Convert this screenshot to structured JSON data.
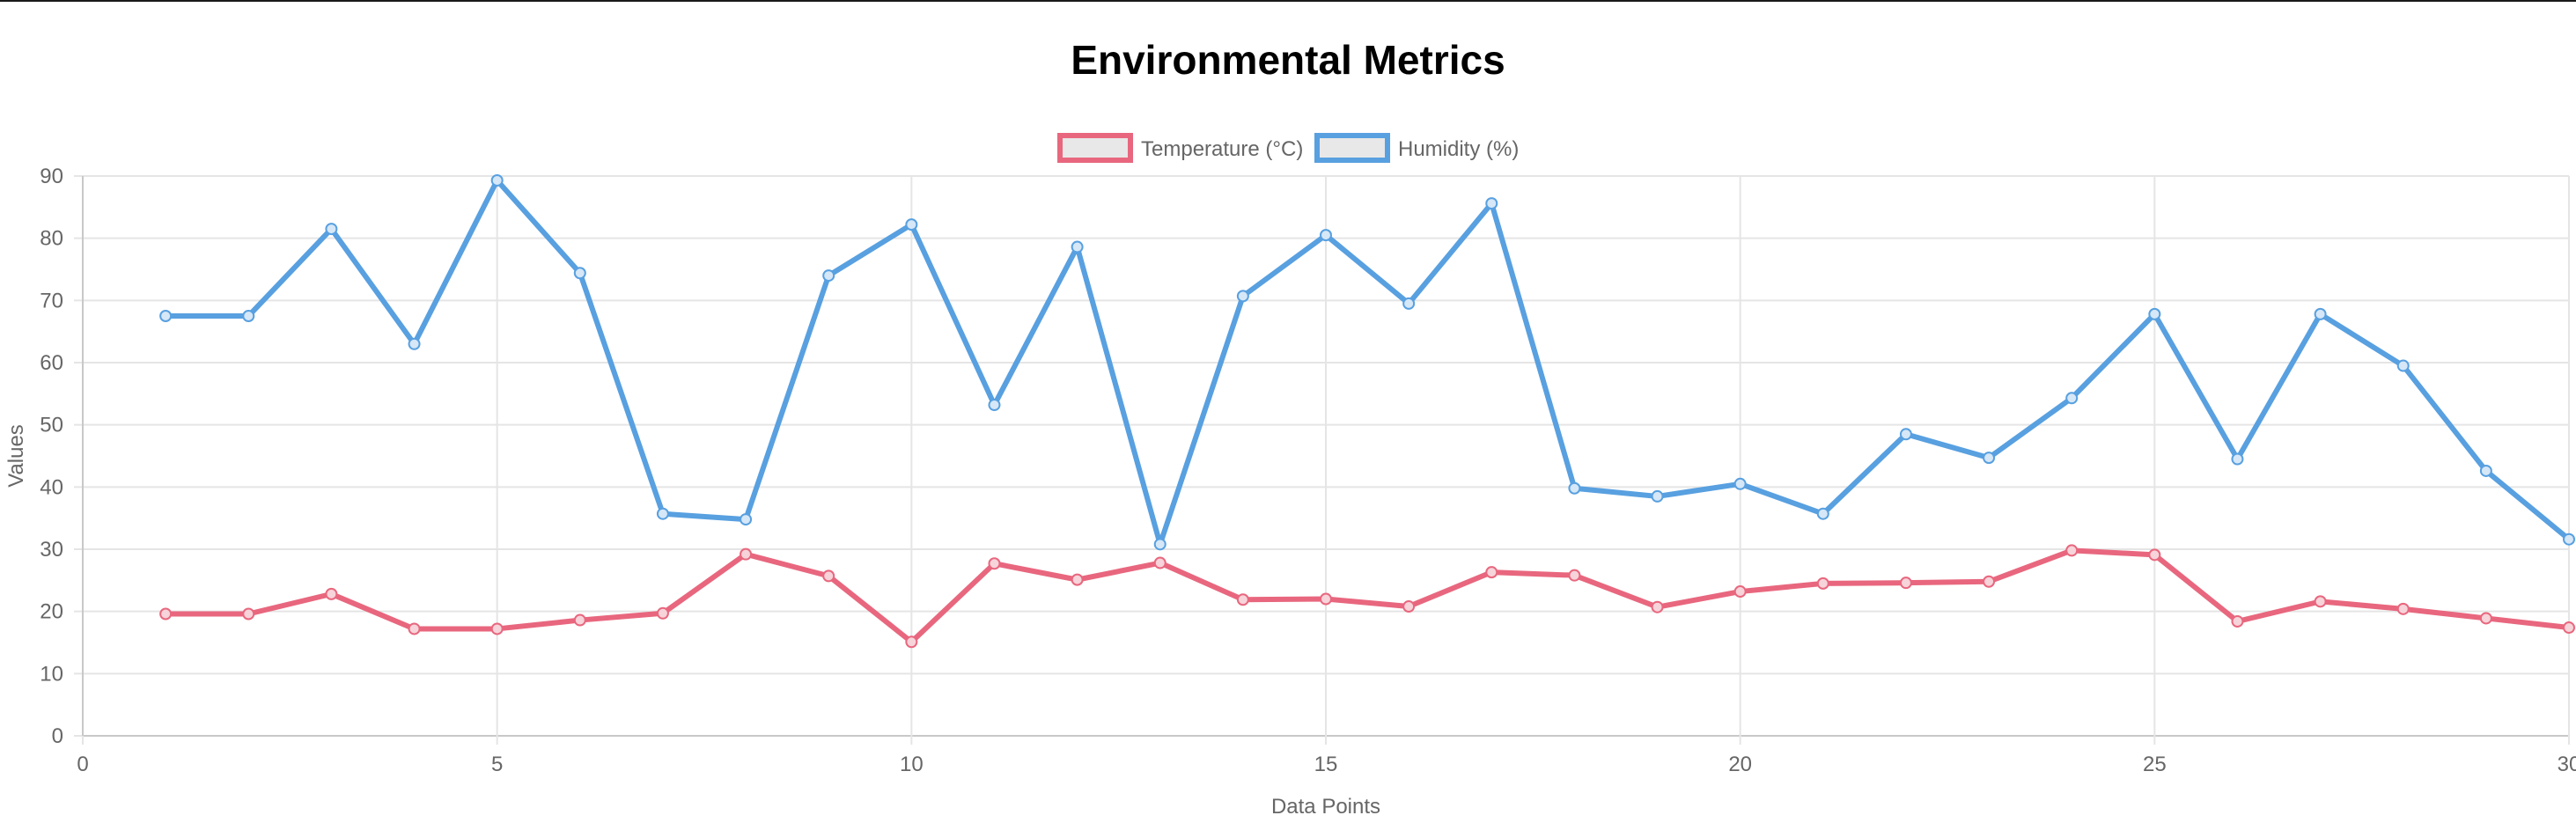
{
  "chart_data": {
    "type": "line",
    "title": "Environmental Metrics",
    "xlabel": "Data Points",
    "ylabel": "Values",
    "xlim": [
      0,
      30
    ],
    "ylim": [
      0,
      90
    ],
    "xticks": [
      0,
      5,
      10,
      15,
      20,
      25,
      30
    ],
    "yticks": [
      0,
      10,
      20,
      30,
      40,
      50,
      60,
      70,
      80,
      90
    ],
    "grid": true,
    "legend_position": "top-center",
    "x": [
      1,
      2,
      3,
      4,
      5,
      6,
      7,
      8,
      9,
      10,
      11,
      12,
      13,
      14,
      15,
      16,
      17,
      18,
      19,
      20,
      21,
      22,
      23,
      24,
      25,
      26,
      27,
      28,
      29,
      30
    ],
    "series": [
      {
        "name": "Temperature (°C)",
        "color": "#e8677e",
        "values": [
          19.6,
          19.6,
          22.8,
          17.2,
          17.2,
          18.6,
          19.7,
          29.2,
          25.7,
          15.1,
          27.7,
          25.1,
          27.8,
          21.9,
          22.0,
          20.8,
          26.3,
          25.8,
          20.7,
          23.2,
          24.5,
          24.6,
          24.8,
          29.8,
          29.1,
          18.4,
          21.6,
          20.4,
          18.9,
          17.4
        ],
        "fill": "#f7d3da"
      },
      {
        "name": "Humidity (%)",
        "color": "#58a0e0",
        "values": [
          67.5,
          67.5,
          81.5,
          63.0,
          89.3,
          74.4,
          35.7,
          34.8,
          74.0,
          82.2,
          53.2,
          78.6,
          30.8,
          70.7,
          80.5,
          69.5,
          85.6,
          39.8,
          38.5,
          40.5,
          35.7,
          48.5,
          44.7,
          54.3,
          67.8,
          44.5,
          67.8,
          59.5,
          42.6,
          31.6
        ],
        "fill": "#d6e7f7"
      }
    ]
  }
}
